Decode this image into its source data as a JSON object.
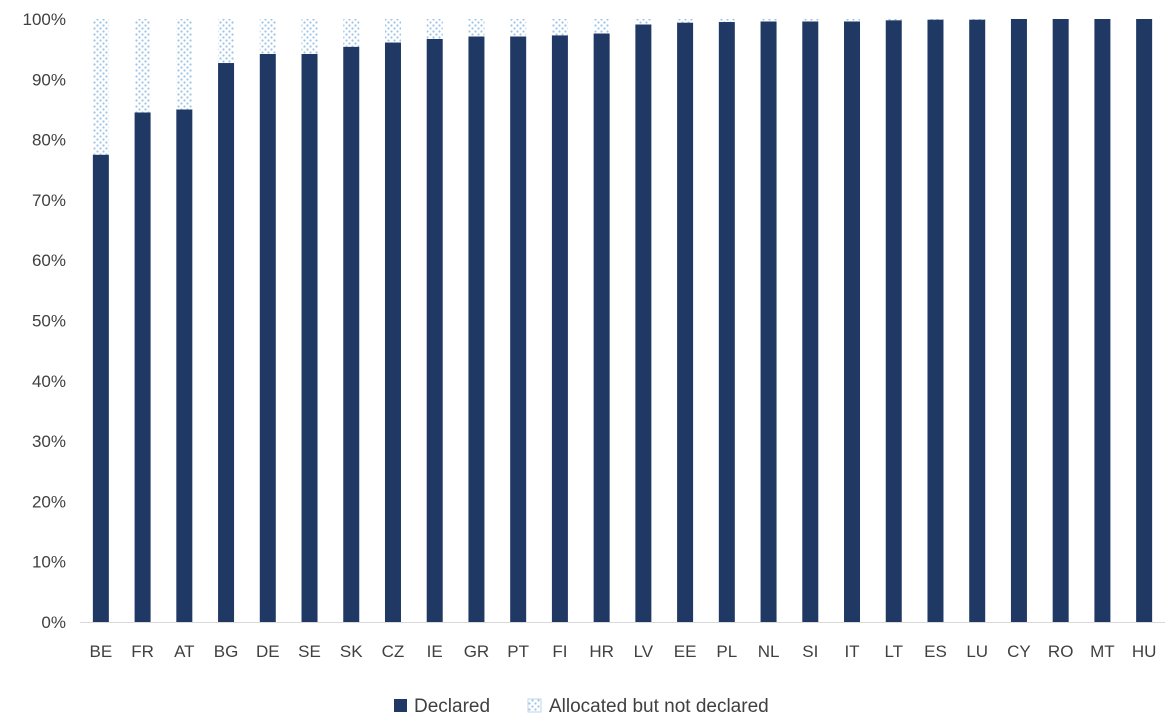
{
  "chart_data": {
    "type": "bar",
    "stacked": true,
    "categories": [
      "BE",
      "FR",
      "AT",
      "BG",
      "DE",
      "SE",
      "SK",
      "CZ",
      "IE",
      "GR",
      "PT",
      "FI",
      "HR",
      "LV",
      "EE",
      "PL",
      "NL",
      "SI",
      "IT",
      "LT",
      "ES",
      "LU",
      "CY",
      "RO",
      "MT",
      "HU"
    ],
    "series": [
      {
        "name": "Declared",
        "color": "#1f3864",
        "pattern": "solid",
        "values": [
          77.5,
          84.5,
          85.0,
          92.7,
          94.2,
          94.2,
          95.4,
          96.1,
          96.7,
          97.1,
          97.1,
          97.3,
          97.6,
          99.1,
          99.4,
          99.5,
          99.6,
          99.6,
          99.6,
          99.8,
          99.9,
          99.9,
          100,
          100,
          100,
          100
        ]
      },
      {
        "name": "Allocated but not declared",
        "color": "#bdd7ee",
        "pattern": "dotted",
        "values": [
          22.5,
          15.5,
          15.0,
          7.3,
          5.8,
          5.8,
          4.6,
          3.9,
          3.3,
          2.9,
          2.9,
          2.7,
          2.4,
          0.9,
          0.6,
          0.5,
          0.4,
          0.4,
          0.4,
          0.2,
          0.1,
          0.1,
          0,
          0,
          0,
          0
        ]
      }
    ],
    "y_ticks": [
      "0%",
      "10%",
      "20%",
      "30%",
      "40%",
      "50%",
      "60%",
      "70%",
      "80%",
      "90%",
      "100%"
    ],
    "ylim": [
      0,
      100
    ],
    "title": "",
    "xlabel": "",
    "ylabel": "",
    "grid": false,
    "legend_position": "bottom-center"
  }
}
